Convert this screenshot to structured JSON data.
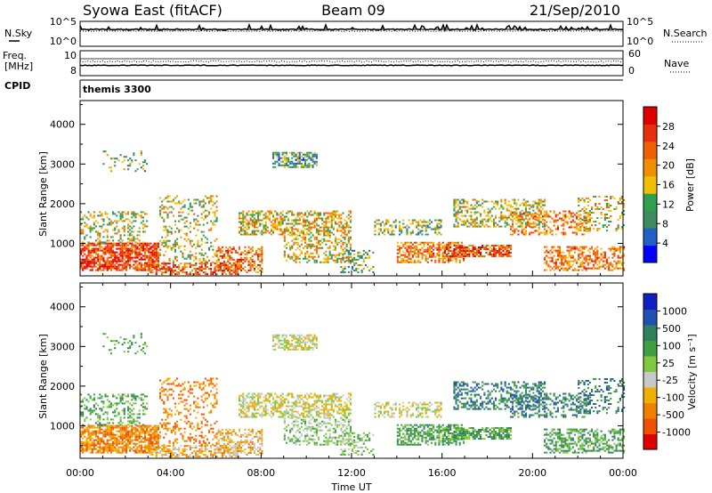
{
  "header": {
    "station": "Syowa East (fitACF)",
    "beam": "Beam 09",
    "date": "21/Sep/2010"
  },
  "panels": {
    "nsky": {
      "left_label": "N.Sky",
      "right_label": "N.Search",
      "tick_top": "10^5",
      "tick_bottom": "10^0"
    },
    "freq": {
      "left_label_1": "Freq.",
      "left_label_2": "[MHz]",
      "right_label": "Nave",
      "tick_top_left": "10",
      "tick_bottom_left": "8",
      "tick_top_right": "60",
      "tick_bottom_right": "0"
    },
    "cpid": {
      "left_label": "CPID",
      "value": "themis 3300"
    }
  },
  "colors": {
    "power": [
      "#0000ff",
      "#2060c8",
      "#3c8c60",
      "#30a050",
      "#f0c000",
      "#f09000",
      "#f06000",
      "#e83010",
      "#e00000"
    ],
    "velocity": [
      "#e00000",
      "#f05000",
      "#f08000",
      "#f0b000",
      "#c8c8c8",
      "#80c840",
      "#40a040",
      "#308060",
      "#2050b0",
      "#1020c0"
    ]
  },
  "chart_data": [
    {
      "type": "heatmap",
      "title": "Power",
      "ylabel": "Slant Range [km]",
      "yticks": [
        "1000",
        "2000",
        "3000",
        "4000"
      ],
      "ylim": [
        180,
        4600
      ],
      "xlim": [
        0,
        24
      ],
      "colorbar_label": "Power [dB]",
      "colorbar_ticks": [
        "4",
        "8",
        "12",
        "16",
        "20",
        "24",
        "28"
      ],
      "crange": [
        0,
        32
      ]
    },
    {
      "type": "heatmap",
      "title": "Velocity",
      "ylabel": "Slant Range [km]",
      "yticks": [
        "1000",
        "2000",
        "3000",
        "4000"
      ],
      "ylim": [
        180,
        4600
      ],
      "xlim": [
        0,
        24
      ],
      "xlabel": "Time UT",
      "xticks": [
        "00:00",
        "04:00",
        "08:00",
        "12:00",
        "16:00",
        "20:00",
        "00:00"
      ],
      "colorbar_label": "Velocity [m s⁻¹]",
      "colorbar_ticks": [
        "1000",
        "500",
        "100",
        "25",
        "-25",
        "-100",
        "-500",
        "-1000"
      ]
    }
  ]
}
